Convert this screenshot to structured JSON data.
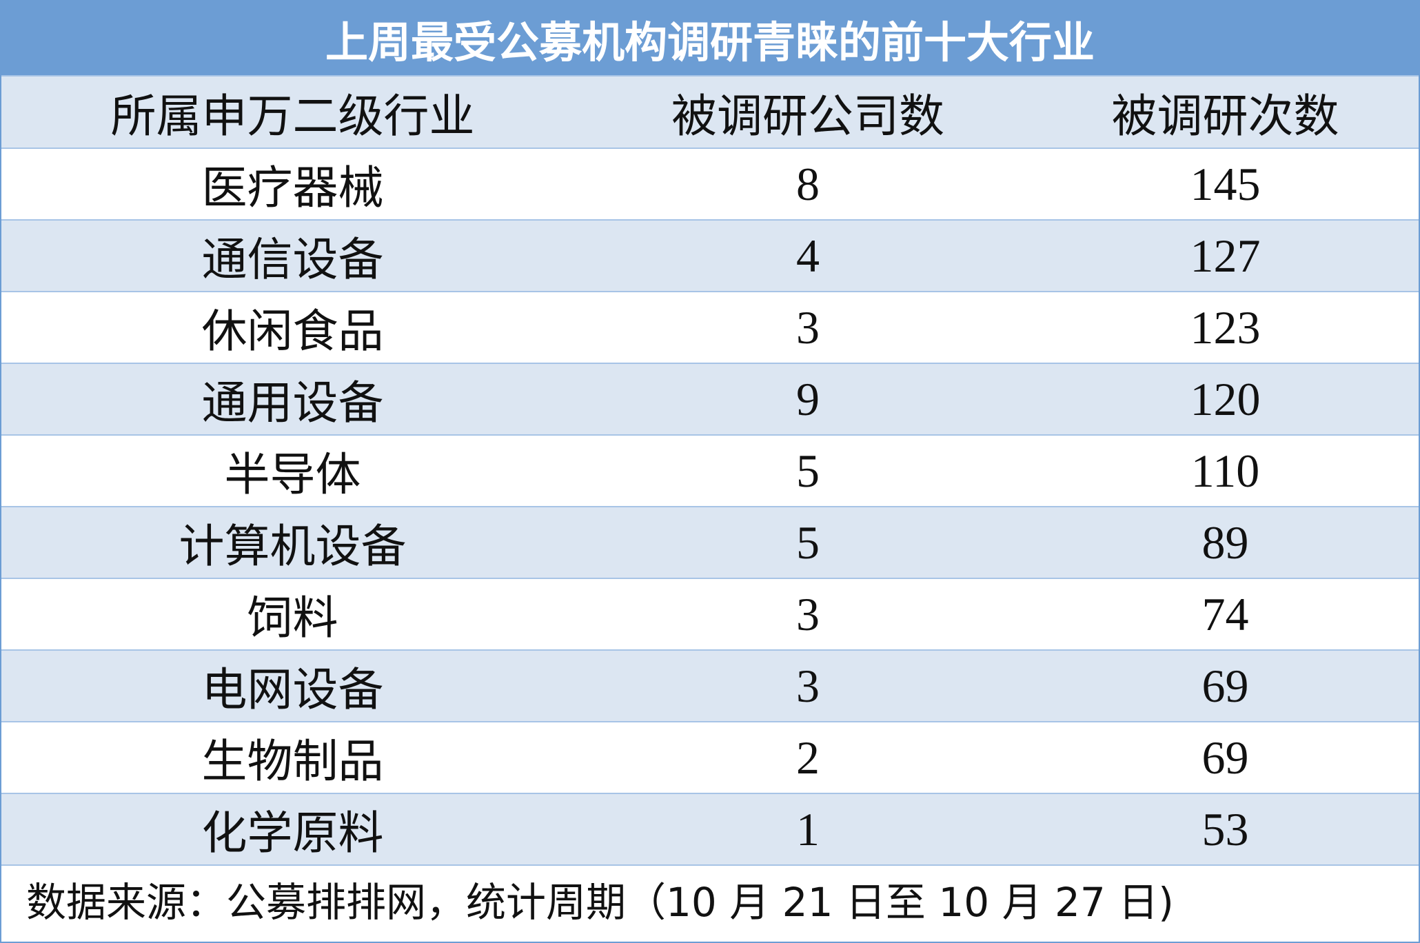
{
  "table": {
    "title": "上周最受公募机构调研青睐的前十大行业",
    "columns": [
      "所属申万二级行业",
      "被调研公司数",
      "被调研次数"
    ],
    "rows": [
      [
        "医疗器械",
        8,
        145
      ],
      [
        "通信设备",
        4,
        127
      ],
      [
        "休闲食品",
        3,
        123
      ],
      [
        "通用设备",
        9,
        120
      ],
      [
        "半导体",
        5,
        110
      ],
      [
        "计算机设备",
        5,
        89
      ],
      [
        "饲料",
        3,
        74
      ],
      [
        "电网设备",
        3,
        69
      ],
      [
        "生物制品",
        2,
        69
      ],
      [
        "化学原料",
        1,
        53
      ]
    ],
    "source": "数据来源：公募排排网，统计周期（10 月 21 日至 10 月 27 日)"
  }
}
